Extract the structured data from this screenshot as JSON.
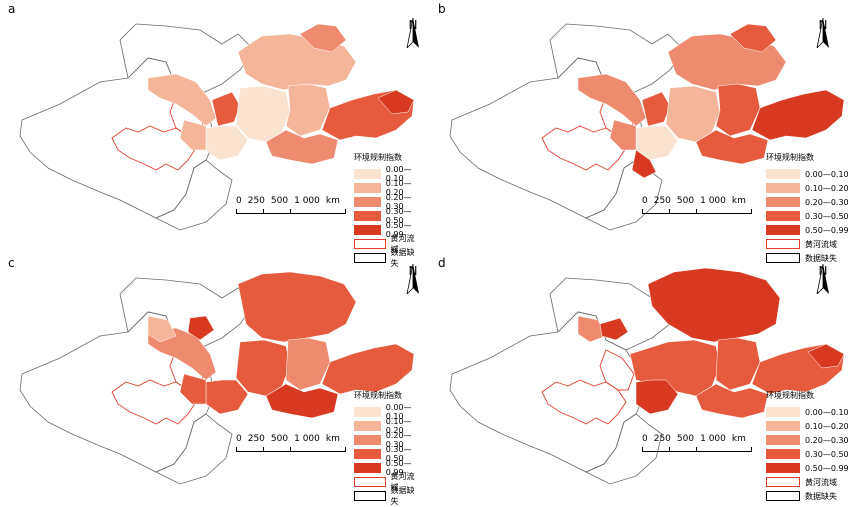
{
  "panels": [
    {
      "id": "a",
      "label": "a"
    },
    {
      "id": "b",
      "label": "b"
    },
    {
      "id": "c",
      "label": "c"
    },
    {
      "id": "d",
      "label": "d"
    }
  ],
  "north_label": "N",
  "scale": {
    "labels": [
      "0",
      "250",
      "500",
      "1 000",
      "km"
    ]
  },
  "legend": {
    "title": "环境规制指数",
    "classes": [
      {
        "label": "0.00—0.10",
        "color": "#fbe3d2"
      },
      {
        "label": "0.10—0.20",
        "color": "#f5b599"
      },
      {
        "label": "0.20—0.30",
        "color": "#ee8a6e"
      },
      {
        "label": "0.30—0.50",
        "color": "#e65a3d"
      },
      {
        "label": "0.50—0.99",
        "color": "#d83a21"
      }
    ],
    "basin_label": "黄河流域",
    "basin_color": "#e2402d",
    "missing_label": "数据缺失"
  }
}
